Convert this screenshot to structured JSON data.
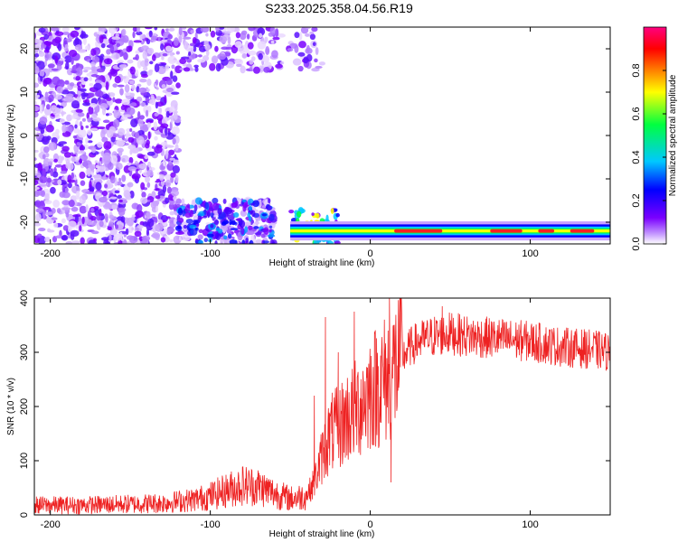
{
  "title": "S233.2025.358.04.56.R19",
  "chart_data": [
    {
      "type": "heatmap",
      "xlabel": "Height of straight line (km)",
      "ylabel": "Frequency (Hz)",
      "xlim": [
        -210,
        150
      ],
      "ylim": [
        -25,
        25
      ],
      "xticks": [
        -200,
        -100,
        0,
        100
      ],
      "yticks": [
        -20,
        -10,
        0,
        10,
        20
      ],
      "colorbar": {
        "label": "Normalized spectral amplitude",
        "range": [
          0,
          1
        ],
        "ticks": [
          0.0,
          0.2,
          0.4,
          0.6,
          0.8
        ],
        "colormap": [
          "#ffffff",
          "#7a00ff",
          "#0000ff",
          "#00c8ff",
          "#00ff40",
          "#ffff00",
          "#ff8000",
          "#ff0000",
          "#ff0080"
        ]
      },
      "signal_band": {
        "center_freq_hz": -22,
        "start_km": -50,
        "end_km": 150
      },
      "noise_regions": [
        {
          "x": [
            -210,
            -120
          ],
          "y": [
            -25,
            25
          ],
          "density": 0.55
        },
        {
          "x": [
            -120,
            -60
          ],
          "y": [
            -25,
            -15
          ],
          "density": 0.6
        },
        {
          "x": [
            -120,
            -60
          ],
          "y": [
            15,
            25
          ],
          "density": 0.45
        },
        {
          "x": [
            -60,
            -30
          ],
          "y": [
            15,
            25
          ],
          "density": 0.25
        }
      ]
    },
    {
      "type": "line",
      "xlabel": "Height of straight line (km)",
      "ylabel": "SNR (10 * v/v)",
      "xlim": [
        -210,
        150
      ],
      "ylim": [
        0,
        400
      ],
      "xticks": [
        -200,
        -100,
        0,
        100
      ],
      "yticks": [
        0,
        100,
        200,
        300,
        400
      ],
      "color": "#ee2222",
      "trend": {
        "x": [
          -210,
          -180,
          -150,
          -130,
          -120,
          -110,
          -100,
          -90,
          -80,
          -70,
          -60,
          -50,
          -40,
          -35,
          -30,
          -25,
          -20,
          -15,
          -10,
          -5,
          0,
          5,
          10,
          15,
          20,
          25,
          30,
          40,
          50,
          60,
          80,
          100,
          120,
          140,
          150
        ],
        "y": [
          18,
          18,
          20,
          22,
          25,
          28,
          35,
          45,
          55,
          52,
          40,
          30,
          35,
          60,
          110,
          150,
          160,
          180,
          190,
          210,
          230,
          240,
          250,
          270,
          290,
          310,
          320,
          330,
          335,
          330,
          325,
          320,
          310,
          305,
          300
        ]
      },
      "spikes": [
        {
          "x": -35,
          "y": 220
        },
        {
          "x": -28,
          "y": 365
        },
        {
          "x": -20,
          "y": 300
        },
        {
          "x": -10,
          "y": 375
        },
        {
          "x": 12,
          "y": 400
        },
        {
          "x": 13,
          "y": 60
        },
        {
          "x": 45,
          "y": 385
        }
      ]
    }
  ]
}
